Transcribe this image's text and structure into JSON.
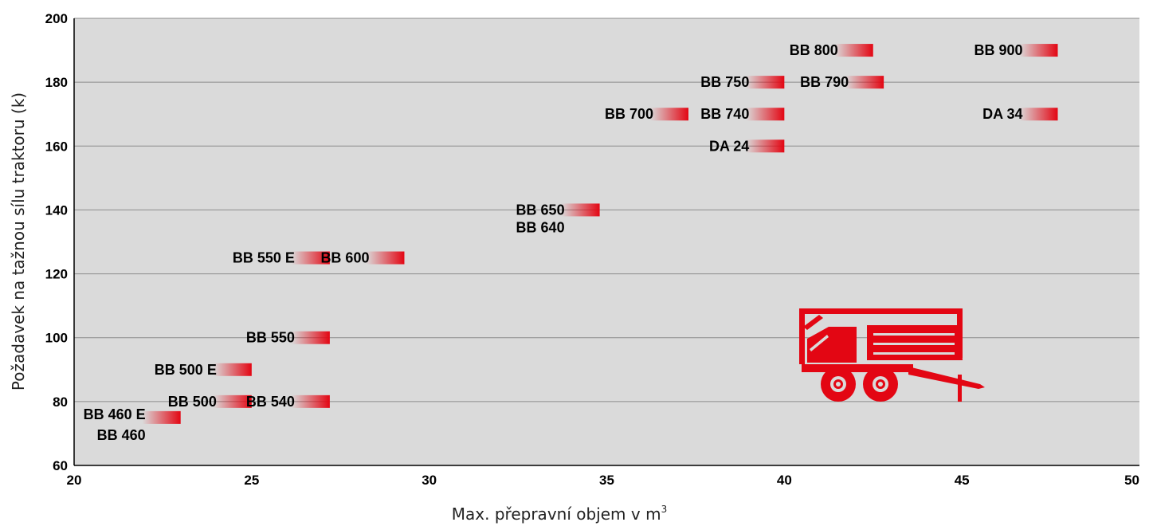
{
  "chart_data": {
    "type": "scatter",
    "title": "",
    "xlabel": "Max. přepravní objem v m",
    "xlabel_superscript": "3",
    "ylabel": "Požadavek na tažnou sílu traktoru (k)",
    "xlim": [
      20,
      50
    ],
    "ylim": [
      60,
      200
    ],
    "xticks": [
      20,
      25,
      30,
      35,
      40,
      45,
      50
    ],
    "yticks": [
      60,
      80,
      100,
      120,
      140,
      160,
      180,
      200
    ],
    "grid": true,
    "background_color": "#dadada",
    "bar_color": "#e30613",
    "series": [
      {
        "label": "BB 460 E",
        "x": 23.0,
        "y": 75
      },
      {
        "label": "BB 460",
        "x": 23.0,
        "y": 75
      },
      {
        "label": "BB 500",
        "x": 25.0,
        "y": 80
      },
      {
        "label": "BB 540",
        "x": 27.2,
        "y": 80
      },
      {
        "label": "BB 500 E",
        "x": 25.0,
        "y": 90
      },
      {
        "label": "BB 550",
        "x": 27.2,
        "y": 100
      },
      {
        "label": "BB 550 E",
        "x": 27.2,
        "y": 125
      },
      {
        "label": "BB 600",
        "x": 29.3,
        "y": 125
      },
      {
        "label": "BB 650",
        "x": 34.8,
        "y": 140
      },
      {
        "label": "BB 640",
        "x": 34.8,
        "y": 140
      },
      {
        "label": "DA 24",
        "x": 40.0,
        "y": 160
      },
      {
        "label": "BB 700",
        "x": 37.3,
        "y": 170
      },
      {
        "label": "BB 740",
        "x": 40.0,
        "y": 170
      },
      {
        "label": "BB 750",
        "x": 40.0,
        "y": 180
      },
      {
        "label": "BB 790",
        "x": 42.8,
        "y": 180
      },
      {
        "label": "BB 800",
        "x": 42.5,
        "y": 190
      },
      {
        "label": "BB 900",
        "x": 47.7,
        "y": 190
      },
      {
        "label": "DA 34",
        "x": 47.7,
        "y": 170
      }
    ],
    "illustration_icon": "trailer-icon"
  }
}
